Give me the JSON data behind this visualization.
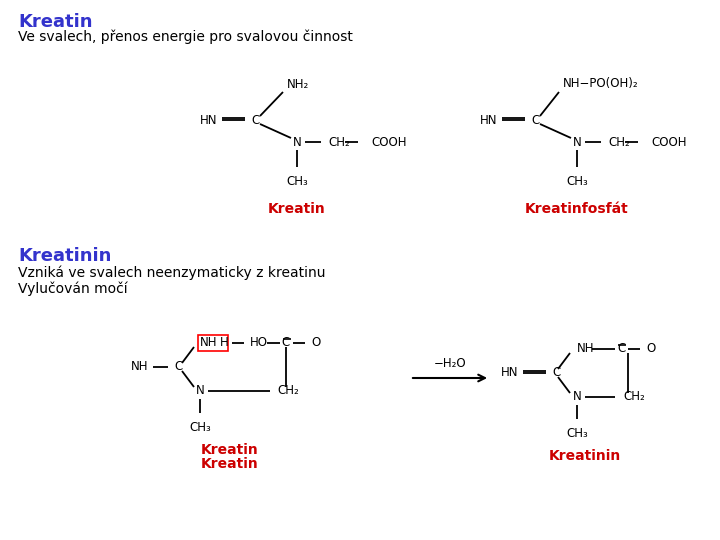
{
  "title1": "Kreatin",
  "title1_color": "#3333CC",
  "subtitle1": "Ve svalech, přenos energie pro svalovou činnost",
  "title2": "Kreatinin",
  "title2_color": "#3333CC",
  "subtitle2a": "Vzniká ve svalech neenzymaticky z kreatinu",
  "subtitle2b": "Vylučován močí",
  "label_kreatin": "Kreatin",
  "label_kreatinfosfat": "Kreatinfosfát",
  "label_kreatin2": "Kreatin",
  "label_kreatinin": "Kreatinin",
  "label_color": "#CC0000",
  "reaction_label": "−H₂O",
  "bg_color": "#ffffff",
  "text_color": "#000000",
  "line_color": "#000000"
}
